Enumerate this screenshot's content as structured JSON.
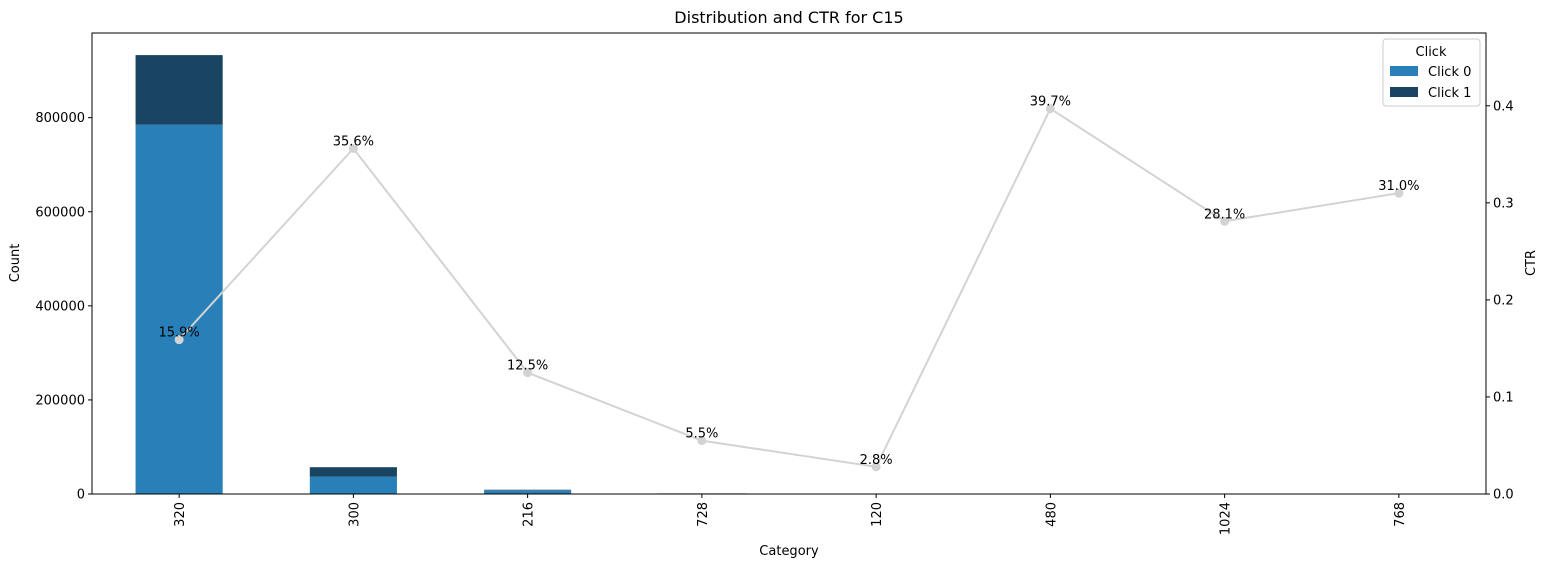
{
  "chart_data": {
    "type": "bar",
    "title": "Distribution and CTR for C15",
    "xlabel": "Category",
    "ylabel": "Count",
    "y2label": "CTR",
    "categories": [
      "320",
      "300",
      "216",
      "728",
      "120",
      "480",
      "1024",
      "768"
    ],
    "series": [
      {
        "name": "Click 0",
        "type": "bar",
        "stack": "count",
        "color": "#2980b9",
        "values": [
          785000,
          37000,
          8000,
          1200,
          400,
          110,
          100,
          50
        ]
      },
      {
        "name": "Click 1",
        "type": "bar",
        "stack": "count",
        "color": "#1a4562",
        "values": [
          148000,
          20000,
          1100,
          70,
          10,
          70,
          40,
          20
        ]
      }
    ],
    "ctr": {
      "type": "line",
      "color": "#d3d3d3",
      "values": [
        0.159,
        0.356,
        0.125,
        0.055,
        0.028,
        0.397,
        0.281,
        0.31
      ],
      "labels": [
        "15.9%",
        "35.6%",
        "12.5%",
        "5.5%",
        "2.8%",
        "39.7%",
        "28.1%",
        "31.0%"
      ]
    },
    "ylim": [
      0,
      980000
    ],
    "y2lim": [
      0,
      0.475
    ],
    "yticks": [
      0,
      200000,
      400000,
      600000,
      800000
    ],
    "y2ticks": [
      "0.0",
      "0.1",
      "0.2",
      "0.3",
      "0.4"
    ],
    "grid": false,
    "legend": {
      "title": "Click",
      "position": "top-right"
    }
  }
}
